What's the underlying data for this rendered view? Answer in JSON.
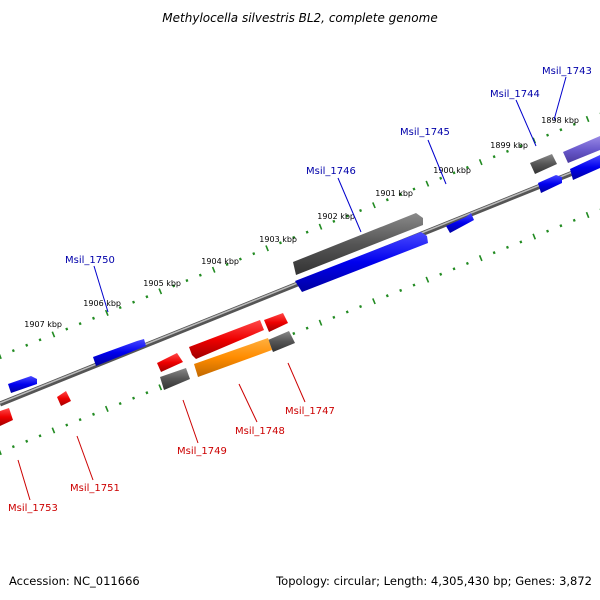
{
  "title": "Methylocella silvestris BL2, complete genome",
  "footer": {
    "accession": "Accession: NC_011666",
    "topology": "Topology: circular; Length: 4,305,430 bp; Genes: 3,872"
  },
  "colors": {
    "forward_gene": "#0000ee",
    "reverse_gene": "#ee0000",
    "other_gene": "#555555",
    "highlight_gene": "#ff8c00",
    "purple_gene": "#6a5acd",
    "backbone": "#777777",
    "tick": "#228b22",
    "label_forward": "#0000aa",
    "label_reverse": "#cc0000"
  },
  "kbp_labels": [
    "1898 kbp",
    "1899 kbp",
    "1900 kbp",
    "1901 kbp",
    "1902 kbp",
    "1903 kbp",
    "1904 kbp",
    "1905 kbp",
    "1906 kbp",
    "1907 kbp"
  ],
  "gene_labels_forward": [
    "Msil_1743",
    "Msil_1744",
    "Msil_1745",
    "Msil_1746",
    "Msil_1750"
  ],
  "gene_labels_reverse": [
    "Msil_1747",
    "Msil_1748",
    "Msil_1749",
    "Msil_1751",
    "Msil_1753"
  ]
}
